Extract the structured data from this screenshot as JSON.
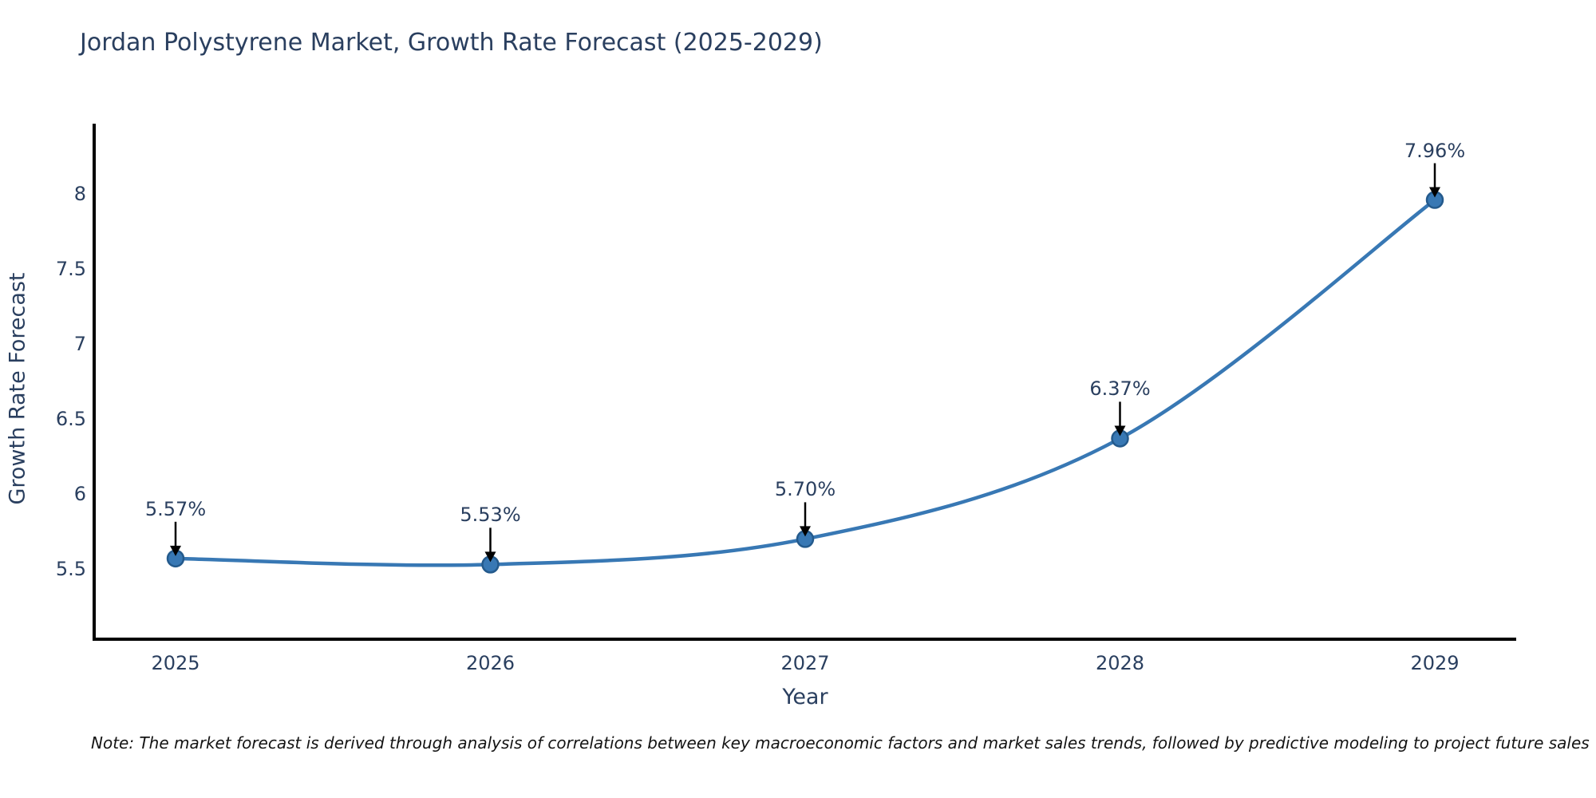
{
  "title": "Jordan Polystyrene Market, Growth Rate Forecast (2025-2029)",
  "note": "Note: The market forecast is derived through analysis of correlations between key macroeconomic factors and market sales trends, followed by predictive modeling to project future sales",
  "chart_data": {
    "type": "line",
    "line_shape": "spline",
    "title": "Jordan Polystyrene Market, Growth Rate Forecast (2025-2029)",
    "xlabel": "Year",
    "ylabel": "Growth Rate Forecast",
    "x": [
      2025,
      2026,
      2027,
      2028,
      2029
    ],
    "y": [
      5.57,
      5.53,
      5.7,
      6.37,
      7.96
    ],
    "point_labels": [
      "5.57%",
      "5.53%",
      "5.70%",
      "6.37%",
      "7.96%"
    ],
    "yticks": [
      5.5,
      6,
      6.5,
      7,
      7.5,
      8
    ],
    "xlim": [
      2024.74,
      2029.26
    ],
    "ylim": [
      5.03,
      8.47
    ],
    "grid": false,
    "legend": "none",
    "annotations_have_arrows": true,
    "colors": {
      "line": "#3878b4",
      "marker_fill": "#3878b4",
      "marker_edge": "#245a8c",
      "axis_line": "#000000",
      "arrow": "#000000",
      "text": "#2a3f5f",
      "note_text": "#141414",
      "background": "#ffffff"
    }
  }
}
